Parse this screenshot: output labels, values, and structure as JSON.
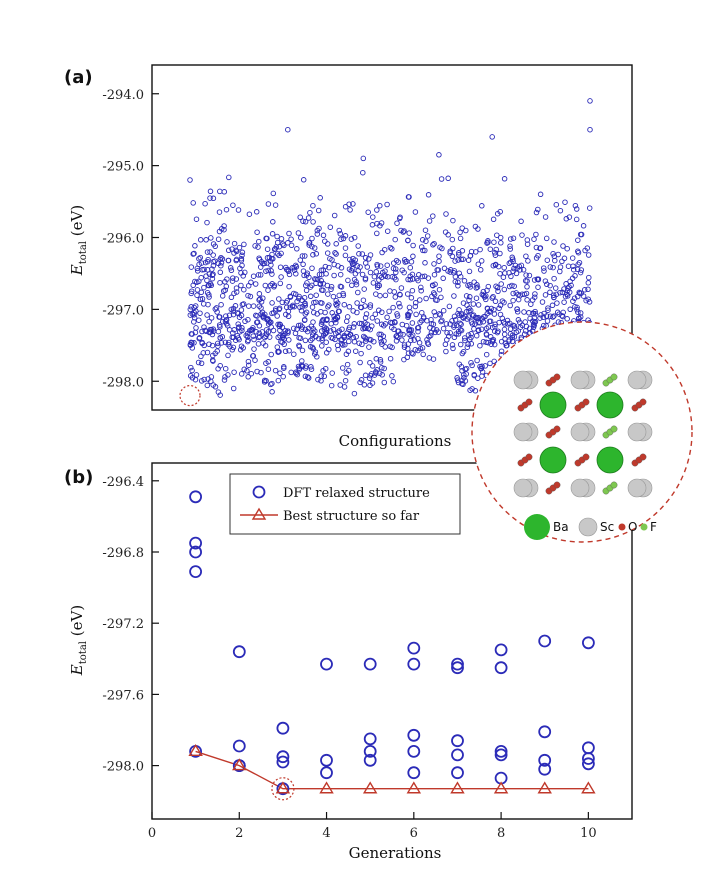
{
  "colors": {
    "circles": "#2b2bb8",
    "best_line": "#c0392b",
    "highlight": "#c0392b",
    "ba": "#2db52d",
    "sc": "#c8c8c8",
    "o": "#c0392b",
    "f": "#7ec850"
  },
  "chart_data": [
    {
      "panel": "(a)",
      "type": "scatter",
      "xlabel": "Configurations",
      "ylabel_main": "E",
      "ylabel_sub": "total",
      "ylabel_unit": "(eV)",
      "ylim": [
        -298.4,
        -293.6
      ],
      "yticks": [
        "-294.0",
        "-295.0",
        "-296.0",
        "-297.0",
        "-298.0"
      ],
      "ytick_values": [
        -294.0,
        -295.0,
        -296.0,
        -297.0,
        -298.0
      ],
      "num_generations": 10,
      "clusters": [
        {
          "center": -297.3,
          "spread": 0.18,
          "weight": 0.42
        },
        {
          "center": -296.6,
          "spread": 0.28,
          "weight": 0.36
        },
        {
          "center": -295.9,
          "spread": 0.35,
          "weight": 0.12
        },
        {
          "center": -297.9,
          "spread": 0.12,
          "weight": 0.1
        }
      ],
      "outliers": [
        {
          "gen": 1.0,
          "y": -295.2
        },
        {
          "gen": 3.2,
          "y": -294.5
        },
        {
          "gen": 4.9,
          "y": -294.9
        },
        {
          "gen": 6.6,
          "y": -294.85
        },
        {
          "gen": 7.8,
          "y": -294.6
        },
        {
          "gen": 10.0,
          "y": -294.1
        },
        {
          "gen": 10.0,
          "y": -294.5
        }
      ],
      "highlight": {
        "gen": 1.0,
        "y": -298.2
      }
    },
    {
      "panel": "(b)",
      "type": "scatter",
      "xlabel": "Generations",
      "ylabel_main": "E",
      "ylabel_sub": "total",
      "ylabel_unit": "(eV)",
      "xlim": [
        0,
        11
      ],
      "xticks": [
        0,
        2,
        4,
        6,
        8,
        10
      ],
      "ylim": [
        -298.3,
        -296.3
      ],
      "yticks": [
        "-296.4",
        "-296.8",
        "-297.2",
        "-297.6",
        "-298.0"
      ],
      "ytick_values": [
        -296.4,
        -296.8,
        -297.2,
        -297.6,
        -298.0
      ],
      "legend": [
        "DFT relaxed structure",
        "Best structure so far"
      ],
      "series": [
        {
          "name": "DFT relaxed structure",
          "points": [
            [
              1,
              -296.49
            ],
            [
              1,
              -296.75
            ],
            [
              1,
              -296.8
            ],
            [
              1,
              -296.91
            ],
            [
              1,
              -297.92
            ],
            [
              2,
              -297.36
            ],
            [
              2,
              -297.89
            ],
            [
              2,
              -298.0
            ],
            [
              2,
              -298.0
            ],
            [
              3,
              -297.79
            ],
            [
              3,
              -297.95
            ],
            [
              3,
              -297.98
            ],
            [
              3,
              -298.13
            ],
            [
              4,
              -297.43
            ],
            [
              4,
              -297.97
            ],
            [
              4,
              -298.04
            ],
            [
              5,
              -297.43
            ],
            [
              5,
              -297.85
            ],
            [
              5,
              -297.92
            ],
            [
              5,
              -297.97
            ],
            [
              6,
              -297.34
            ],
            [
              6,
              -297.43
            ],
            [
              6,
              -297.83
            ],
            [
              6,
              -297.92
            ],
            [
              6,
              -298.04
            ],
            [
              7,
              -297.43
            ],
            [
              7,
              -297.45
            ],
            [
              7,
              -297.86
            ],
            [
              7,
              -297.94
            ],
            [
              7,
              -298.04
            ],
            [
              8,
              -297.35
            ],
            [
              8,
              -297.45
            ],
            [
              8,
              -297.92
            ],
            [
              8,
              -297.94
            ],
            [
              8,
              -298.07
            ],
            [
              9,
              -297.3
            ],
            [
              9,
              -297.81
            ],
            [
              9,
              -297.97
            ],
            [
              9,
              -298.02
            ],
            [
              10,
              -297.31
            ],
            [
              10,
              -297.9
            ],
            [
              10,
              -297.96
            ],
            [
              10,
              -297.99
            ]
          ]
        },
        {
          "name": "Best structure so far",
          "points": [
            [
              1,
              -297.92
            ],
            [
              2,
              -298.0
            ],
            [
              3,
              -298.13
            ],
            [
              4,
              -298.13
            ],
            [
              5,
              -298.13
            ],
            [
              6,
              -298.13
            ],
            [
              7,
              -298.13
            ],
            [
              8,
              -298.13
            ],
            [
              9,
              -298.13
            ],
            [
              10,
              -298.13
            ]
          ]
        }
      ],
      "highlight": {
        "x": 3,
        "y": -298.13
      }
    }
  ],
  "inset": {
    "legend": [
      "Ba",
      "Sc",
      "O",
      "F"
    ]
  }
}
